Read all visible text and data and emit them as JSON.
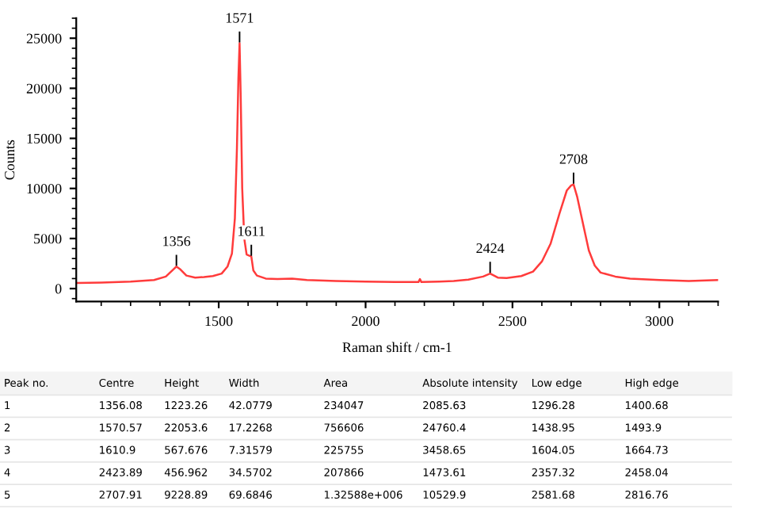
{
  "chart_data": {
    "type": "line",
    "xlabel": "Raman shift / cm-1",
    "ylabel": "Counts",
    "x": [
      1015,
      1100,
      1200,
      1280,
      1320,
      1345,
      1356,
      1370,
      1390,
      1420,
      1450,
      1480,
      1510,
      1530,
      1545,
      1555,
      1562,
      1567,
      1571,
      1575,
      1580,
      1587,
      1595,
      1603,
      1611,
      1618,
      1630,
      1660,
      1700,
      1750,
      1800,
      1900,
      2000,
      2100,
      2180,
      2185,
      2190,
      2250,
      2300,
      2350,
      2400,
      2424,
      2450,
      2480,
      2530,
      2570,
      2600,
      2630,
      2660,
      2685,
      2700,
      2708,
      2720,
      2740,
      2760,
      2780,
      2800,
      2850,
      2900,
      3000,
      3100,
      3200
    ],
    "series": [
      {
        "color": "#ff3b3b",
        "values": [
          550,
          600,
          700,
          850,
          1200,
          1900,
          2200,
          1900,
          1300,
          1100,
          1150,
          1250,
          1500,
          2200,
          3500,
          7000,
          14000,
          21000,
          24500,
          19000,
          10000,
          5000,
          3400,
          3300,
          3200,
          1800,
          1300,
          1000,
          950,
          1000,
          850,
          750,
          700,
          650,
          650,
          950,
          650,
          700,
          750,
          900,
          1200,
          1500,
          1100,
          1050,
          1250,
          1700,
          2700,
          4500,
          7500,
          9800,
          10300,
          10400,
          9200,
          6500,
          3800,
          2300,
          1600,
          1200,
          1000,
          850,
          750,
          850
        ]
      }
    ],
    "xlim": [
      1015,
      3200
    ],
    "xticks": [
      1500,
      2000,
      2500,
      3000
    ],
    "ylim": [
      -1300,
      27000
    ],
    "yticks": [
      0,
      5000,
      10000,
      15000,
      20000,
      25000
    ],
    "grid": false,
    "legend": false,
    "annotations": [
      {
        "text": "1356",
        "x": 1356,
        "y": 2200
      },
      {
        "text": "1571",
        "x": 1571,
        "y": 24500
      },
      {
        "text": "1611",
        "x": 1611,
        "y": 3200
      },
      {
        "text": "2424",
        "x": 2424,
        "y": 1500
      },
      {
        "text": "2708",
        "x": 2708,
        "y": 10400
      },
      "Peak no.",
      "Centre",
      "Height",
      "Width",
      "Area",
      "Absolute intensity",
      "Low edge",
      "High edge",
      "1",
      "1356.08",
      "1223.26",
      "42.0779",
      "234047",
      "2085.63",
      "1296.28",
      "1400.68",
      "2",
      "1570.57",
      "22053.6",
      "17.2268",
      "756606",
      "24760.4",
      "1438.95",
      "1493.9",
      "3",
      "1610.9",
      "567.676",
      "7.31579",
      "225755",
      "3458.65",
      "1604.05",
      "1664.73",
      "4",
      "2423.89",
      "456.962",
      "34.5702",
      "207866",
      "1473.61",
      "2357.32",
      "2458.04",
      "5",
      "2707.91",
      "9228.89",
      "69.6846",
      "1.32588e+006",
      "10529.9",
      "2581.68",
      "2816.76"
    ]
  }
}
